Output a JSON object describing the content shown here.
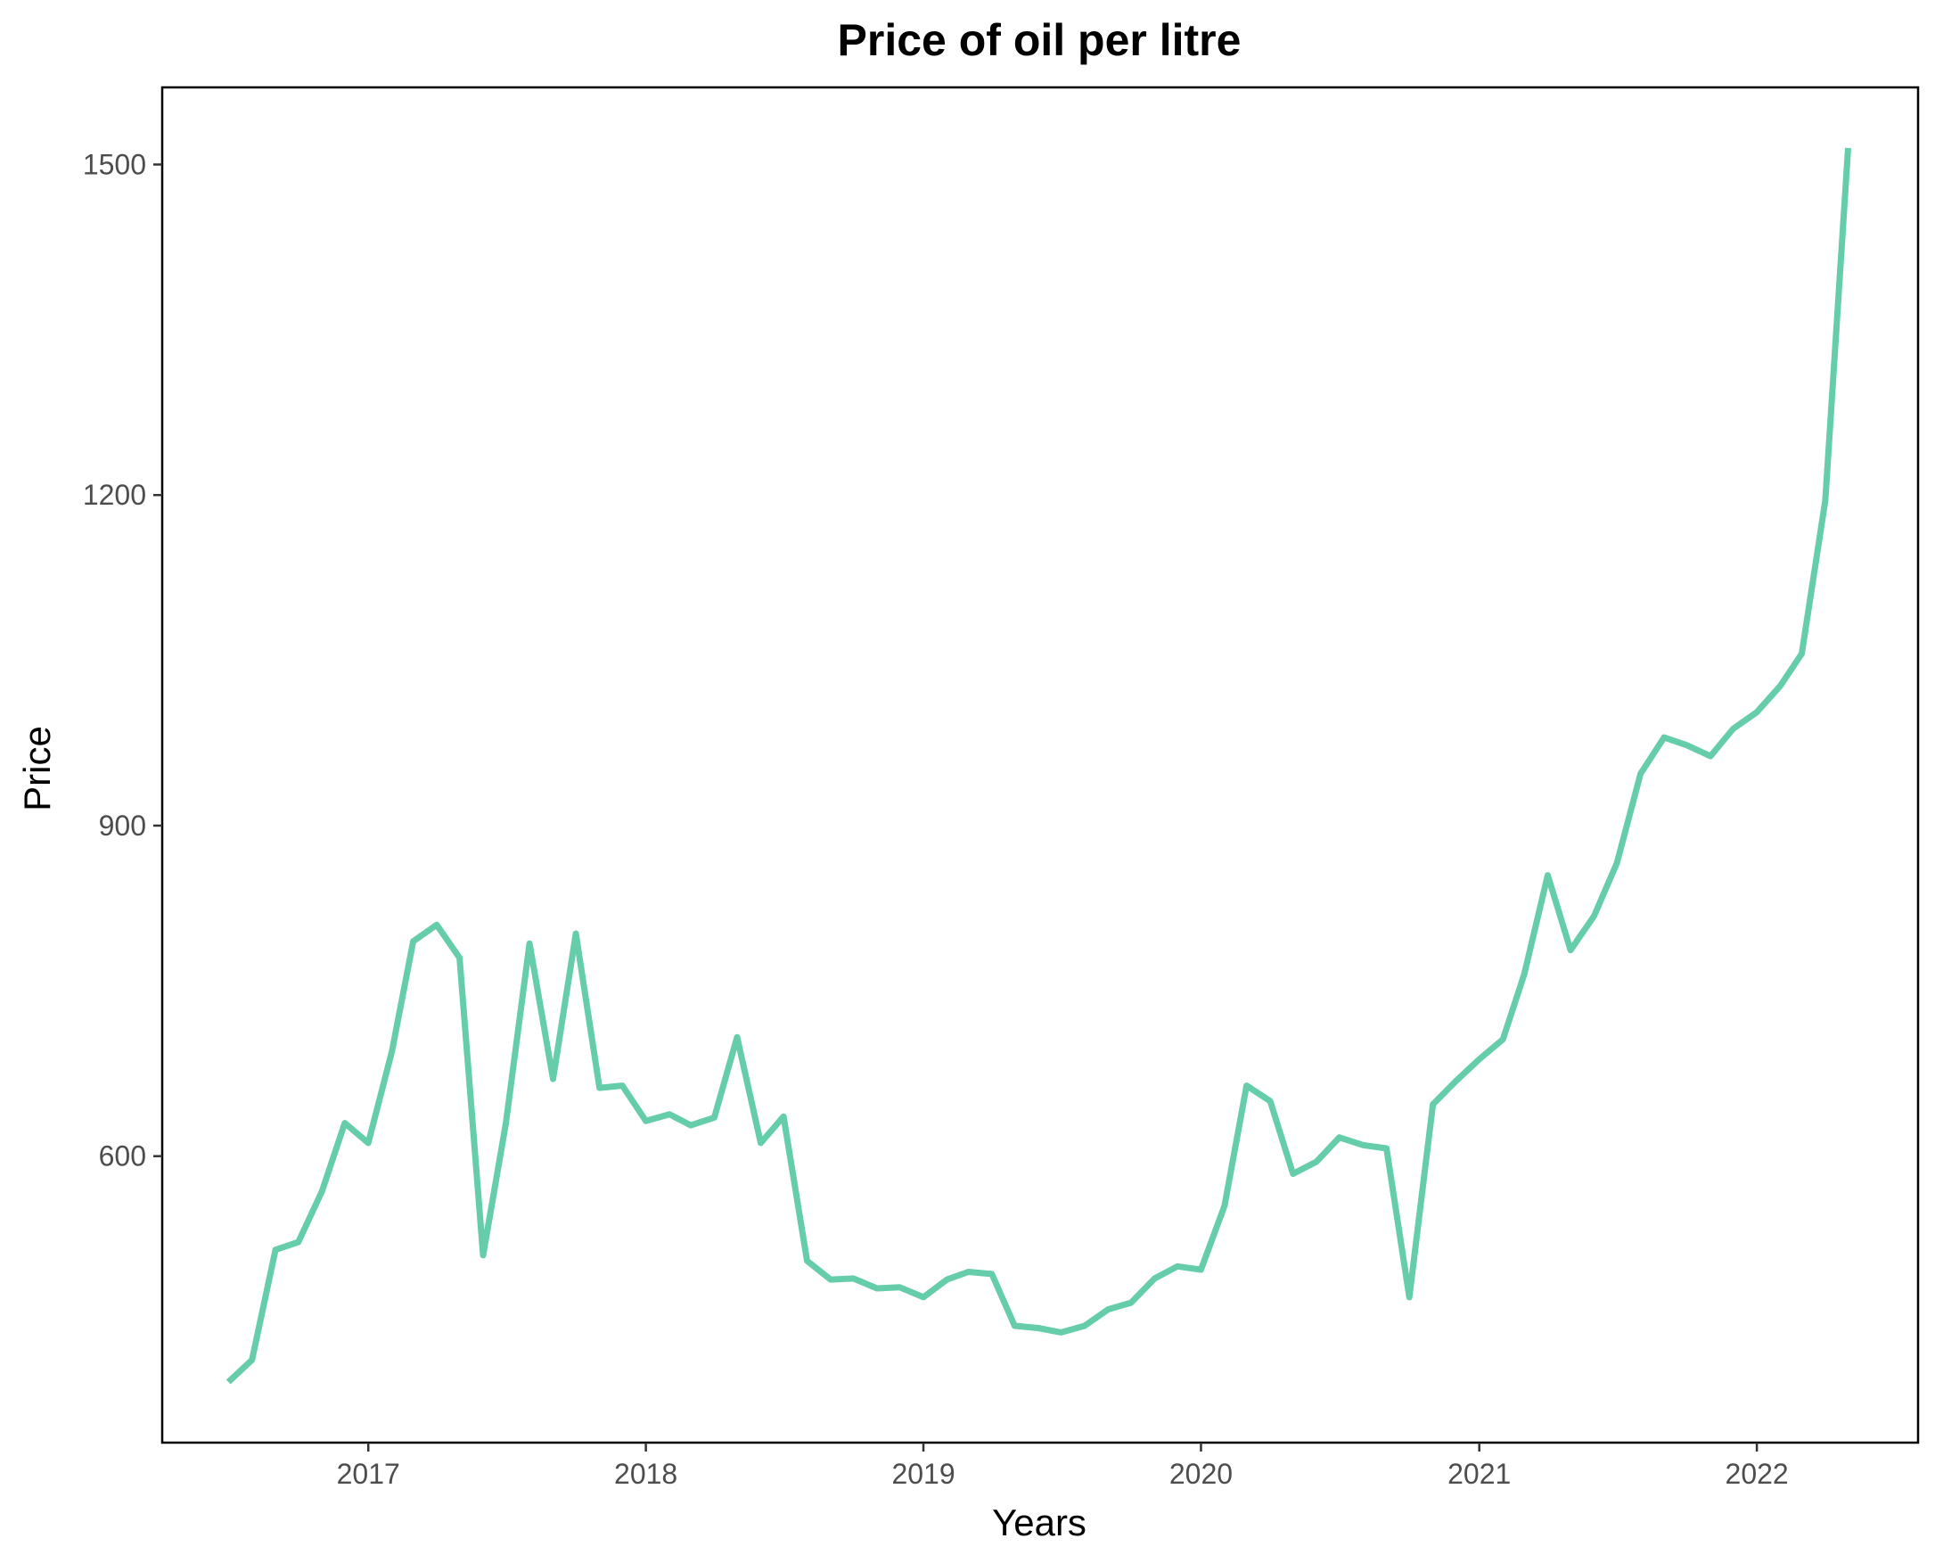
{
  "chart_data": {
    "type": "line",
    "title": "Price of oil per litre",
    "xlabel": "Years",
    "ylabel": "Price",
    "x_tick_labels": [
      "2017",
      "2018",
      "2019",
      "2020",
      "2021",
      "2022"
    ],
    "y_tick_labels": [
      "600",
      "900",
      "1200",
      "1500"
    ],
    "y_ticks": [
      600,
      900,
      1200,
      1500
    ],
    "xlim": [
      "2016-04-05",
      "2022-08-01"
    ],
    "ylim": [
      340,
      1570
    ],
    "grid": false,
    "line_color": "#66cdaa",
    "series": [
      {
        "x": [
          "2016-07-01",
          "2016-08-01",
          "2016-09-01",
          "2016-10-01",
          "2016-11-01",
          "2016-12-01",
          "2017-01-01",
          "2017-02-01",
          "2017-03-01",
          "2017-04-01",
          "2017-05-01",
          "2017-06-01",
          "2017-07-01",
          "2017-08-01",
          "2017-09-01",
          "2017-10-01",
          "2017-11-01",
          "2017-12-01",
          "2018-01-01",
          "2018-02-01",
          "2018-03-01",
          "2018-04-01",
          "2018-05-01",
          "2018-06-01",
          "2018-07-01",
          "2018-08-01",
          "2018-09-01",
          "2018-10-01",
          "2018-11-01",
          "2018-12-01",
          "2019-01-01",
          "2019-02-01",
          "2019-03-01",
          "2019-04-01",
          "2019-05-01",
          "2019-06-01",
          "2019-07-01",
          "2019-08-01",
          "2019-09-01",
          "2019-10-01",
          "2019-11-01",
          "2019-12-01",
          "2020-01-01",
          "2020-02-01",
          "2020-03-01",
          "2020-04-01",
          "2020-05-01",
          "2020-06-01",
          "2020-07-01",
          "2020-08-01",
          "2020-09-01",
          "2020-10-01",
          "2020-11-01",
          "2020-12-01",
          "2021-01-01",
          "2021-02-01",
          "2021-03-01",
          "2021-04-01",
          "2021-05-01",
          "2021-06-01",
          "2021-07-01",
          "2021-08-01",
          "2021-09-01",
          "2021-10-01",
          "2021-11-01",
          "2021-12-01",
          "2022-01-01",
          "2022-02-01",
          "2022-03-01",
          "2022-04-01",
          "2022-05-01"
        ],
        "values": [
          395,
          415,
          515,
          522,
          568,
          630,
          612,
          695,
          795,
          810,
          780,
          510,
          630,
          793,
          670,
          802,
          662,
          664,
          632,
          638,
          628,
          635,
          708,
          612,
          636,
          505,
          488,
          489,
          480,
          481,
          472,
          488,
          495,
          493,
          446,
          444,
          440,
          446,
          461,
          467,
          489,
          500,
          497,
          555,
          664,
          650,
          584,
          595,
          617,
          610,
          607,
          472,
          647,
          668,
          688,
          706,
          765,
          855,
          787,
          818,
          866,
          947,
          980,
          973,
          963,
          988,
          1003,
          1027,
          1056,
          1195,
          1515
        ]
      }
    ]
  }
}
